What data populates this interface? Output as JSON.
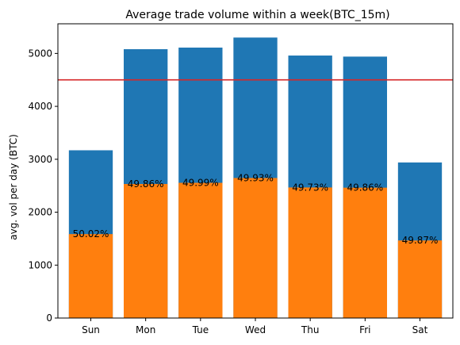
{
  "chart_data": {
    "type": "bar",
    "title": "Average trade volume within a week(BTC_15m)",
    "xlabel": "",
    "ylabel": "avg. vol per day (BTC)",
    "categories": [
      "Sun",
      "Mon",
      "Tue",
      "Wed",
      "Thu",
      "Fri",
      "Sat"
    ],
    "series": [
      {
        "values": [
          3170,
          5080,
          5110,
          5300,
          4960,
          4940,
          2940
        ],
        "color": "#1f77b4"
      },
      {
        "values": [
          1586,
          2533,
          2555,
          2646,
          2467,
          2463,
          1466
        ],
        "color": "#ff7f0e"
      }
    ],
    "data_labels": [
      "50.02%",
      "49.86%",
      "49.99%",
      "49.93%",
      "49.73%",
      "49.86%",
      "49.87%"
    ],
    "reference_line": {
      "y": 4500,
      "color": "#d62728"
    },
    "ylim": [
      0,
      5560
    ],
    "yticks": [
      0,
      1000,
      2000,
      3000,
      4000,
      5000
    ],
    "grid": false,
    "legend": "none"
  }
}
